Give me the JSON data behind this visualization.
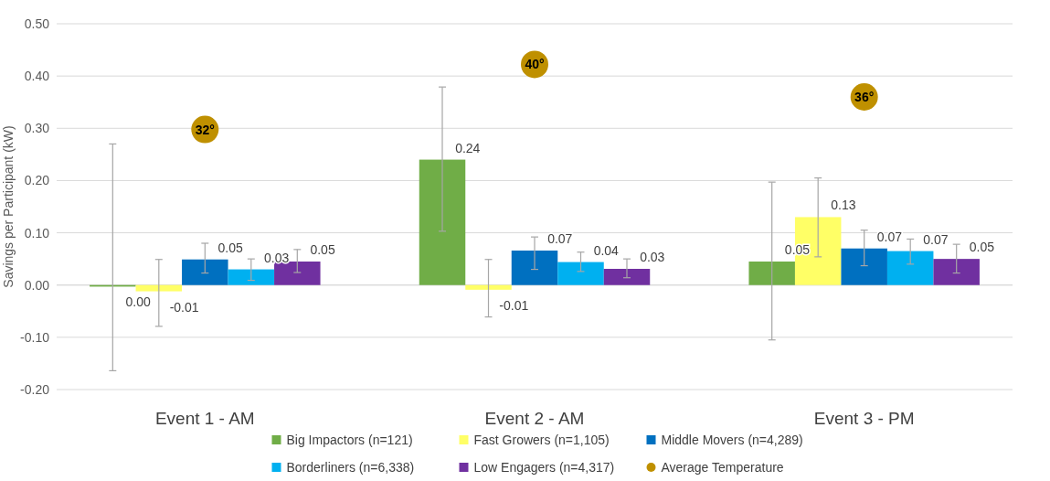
{
  "chart_data": {
    "type": "bar",
    "ylabel": "Savings per Participant (kW)",
    "categories": [
      "Event 1 - AM",
      "Event 2 - AM",
      "Event 3 - PM"
    ],
    "ylim": [
      -0.2,
      0.5
    ],
    "yticks": [
      {
        "value": -0.2,
        "label": "-0.20"
      },
      {
        "value": -0.1,
        "label": "-0.10"
      },
      {
        "value": 0,
        "label": "0.00"
      },
      {
        "value": 0.1,
        "label": "0.10"
      },
      {
        "value": 0.2,
        "label": "0.20"
      },
      {
        "value": 0.3,
        "label": "0.30"
      },
      {
        "value": 0.4,
        "label": "0.40"
      },
      {
        "value": 0.5,
        "label": "0.50"
      }
    ],
    "y2lim": [
      0,
      45
    ],
    "grid": "y",
    "legend": "bottom",
    "series": [
      {
        "name": "Big Impactors (n=121)",
        "color": "#70ad47",
        "values": [
          -0.003,
          0.24,
          0.045
        ],
        "errors": [
          [
            -0.164,
            0.27
          ],
          [
            0.103,
            0.379
          ],
          [
            -0.105,
            0.197
          ]
        ],
        "value_labels": [
          "0.00",
          "0.24",
          "0.05"
        ]
      },
      {
        "name": "Fast Growers (n=1,105)",
        "color": "#ffff66",
        "values": [
          -0.012,
          -0.009,
          0.13
        ],
        "errors": [
          [
            -0.079,
            0.049
          ],
          [
            -0.061,
            0.049
          ],
          [
            0.054,
            0.205
          ]
        ],
        "value_labels": [
          "-0.01",
          "-0.01",
          "0.13"
        ]
      },
      {
        "name": "Middle Movers (n=4,289)",
        "color": "#0070c0",
        "values": [
          0.049,
          0.066,
          0.07
        ],
        "errors": [
          [
            0.023,
            0.08
          ],
          [
            0.03,
            0.092
          ],
          [
            0.037,
            0.105
          ]
        ],
        "value_labels": [
          "0.05",
          "0.07",
          "0.07"
        ]
      },
      {
        "name": "Borderliners (n=6,338)",
        "color": "#00b0f0",
        "values": [
          0.03,
          0.044,
          0.065
        ],
        "errors": [
          [
            0.009,
            0.05
          ],
          [
            0.026,
            0.063
          ],
          [
            0.04,
            0.088
          ]
        ],
        "value_labels": [
          "0.03",
          "0.04",
          "0.07"
        ]
      },
      {
        "name": "Low Engagers (n=4,317)",
        "color": "#7030a0",
        "values": [
          0.045,
          0.031,
          0.05
        ],
        "errors": [
          [
            0.024,
            0.068
          ],
          [
            0.014,
            0.05
          ],
          [
            0.023,
            0.078
          ]
        ],
        "value_labels": [
          "0.05",
          "0.03",
          "0.05"
        ]
      },
      {
        "name": "Average Temperature",
        "type": "scatter",
        "marker": "circle",
        "color": "#bf9000",
        "x": [
          "Event 1 - AM",
          "Event 2 - AM",
          "Event 3 - PM"
        ],
        "axis": "y2",
        "values": [
          32,
          40,
          36
        ],
        "value_labels": [
          "32°",
          "40°",
          "36°"
        ]
      }
    ]
  }
}
